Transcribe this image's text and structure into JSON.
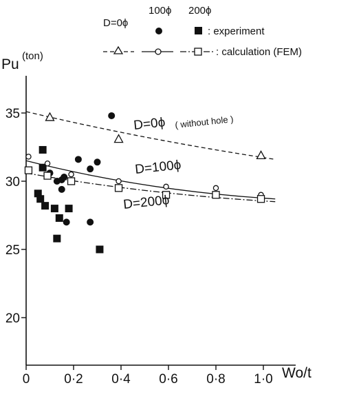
{
  "chart_data": {
    "type": "scatter",
    "ylabel": "Pu",
    "ylabel_unit": "(ton)",
    "xlabel": "Wo/t",
    "xlim": [
      0,
      1.05
    ],
    "ylim": [
      16,
      38
    ],
    "x_ticks": [
      0,
      0.2,
      0.4,
      0.6,
      0.8,
      1.0
    ],
    "x_tick_labels": [
      "0",
      "0·2",
      "0·4",
      "0·6",
      "0·8",
      "1·0"
    ],
    "y_ticks": [
      20,
      25,
      30,
      35
    ],
    "y_tick_labels": [
      "20",
      "25",
      "30",
      "35"
    ],
    "grid": false,
    "legend": {
      "position": "top-right",
      "columns": [
        "D=0ϕ",
        "100ϕ",
        "200ϕ"
      ],
      "experiment_label": ": experiment",
      "calculation_label": ": calculation (FEM)"
    },
    "curve_labels": [
      {
        "series": "D=0",
        "text": "D=0ϕ",
        "suffix": "( without hole )"
      },
      {
        "series": "D=100",
        "text": "D=100ϕ"
      },
      {
        "series": "D=200",
        "text": "D=200ϕ"
      }
    ],
    "series": [
      {
        "kind": "experiment",
        "diameter": "100",
        "marker": "filled-circle",
        "points": [
          [
            0.36,
            34.8
          ],
          [
            0.22,
            31.6
          ],
          [
            0.3,
            31.4
          ],
          [
            0.27,
            30.9
          ],
          [
            0.1,
            30.6
          ],
          [
            0.13,
            30.0
          ],
          [
            0.15,
            30.1
          ],
          [
            0.16,
            30.3
          ],
          [
            0.15,
            29.4
          ],
          [
            0.17,
            27.0
          ],
          [
            0.27,
            27.0
          ]
        ]
      },
      {
        "kind": "experiment",
        "diameter": "200",
        "marker": "filled-square",
        "points": [
          [
            0.07,
            32.3
          ],
          [
            0.07,
            31.0
          ],
          [
            0.05,
            29.1
          ],
          [
            0.06,
            28.7
          ],
          [
            0.08,
            28.2
          ],
          [
            0.12,
            28.0
          ],
          [
            0.18,
            28.0
          ],
          [
            0.14,
            27.3
          ],
          [
            0.13,
            25.8
          ],
          [
            0.31,
            25.0
          ]
        ]
      },
      {
        "kind": "calculation",
        "diameter": "0",
        "marker": "open-triangle",
        "line": "dashed",
        "points": [
          [
            0.1,
            34.7
          ],
          [
            0.39,
            33.1
          ],
          [
            0.99,
            31.9
          ]
        ],
        "curve": [
          [
            0,
            35.1
          ],
          [
            0.5,
            33.2
          ],
          [
            1.05,
            31.6
          ]
        ]
      },
      {
        "kind": "calculation",
        "diameter": "100",
        "marker": "open-circle",
        "line": "solid",
        "points": [
          [
            0.01,
            31.8
          ],
          [
            0.09,
            31.3
          ],
          [
            0.19,
            30.5
          ],
          [
            0.39,
            30.0
          ],
          [
            0.59,
            29.6
          ],
          [
            0.8,
            29.5
          ],
          [
            0.99,
            29.0
          ]
        ],
        "curve": [
          [
            0,
            31.5
          ],
          [
            0.5,
            29.7
          ],
          [
            1.05,
            28.7
          ]
        ]
      },
      {
        "kind": "calculation",
        "diameter": "200",
        "marker": "open-square",
        "line": "dash-dot",
        "points": [
          [
            0.01,
            30.8
          ],
          [
            0.09,
            30.4
          ],
          [
            0.19,
            30.0
          ],
          [
            0.39,
            29.5
          ],
          [
            0.59,
            29.0
          ],
          [
            0.8,
            29.0
          ],
          [
            0.99,
            28.7
          ]
        ],
        "curve": [
          [
            0,
            30.6
          ],
          [
            0.5,
            29.3
          ],
          [
            1.05,
            28.5
          ]
        ]
      }
    ]
  }
}
